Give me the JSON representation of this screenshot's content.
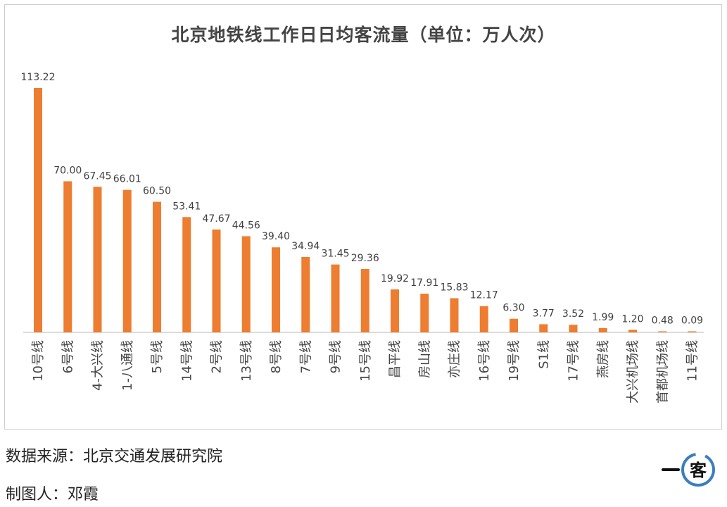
{
  "chart_data": {
    "type": "bar",
    "title": "北京地铁线工作日日均客流量（单位：万人次）",
    "xlabel": "",
    "ylabel": "",
    "ylim": [
      0,
      120
    ],
    "grid": false,
    "legend": "none",
    "bar_color": "#ED7D31",
    "categories": [
      "10号线",
      "6号线",
      "4-大兴线",
      "1-八通线",
      "5号线",
      "14号线",
      "2号线",
      "13号线",
      "8号线",
      "7号线",
      "9号线",
      "15号线",
      "昌平线",
      "房山线",
      "亦庄线",
      "16号线",
      "19号线",
      "S1线",
      "17号线",
      "燕房线",
      "大兴机场线",
      "首都机场线",
      "11号线"
    ],
    "values": [
      113.22,
      70.0,
      67.45,
      66.01,
      60.5,
      53.41,
      47.67,
      44.56,
      39.4,
      34.94,
      31.45,
      29.36,
      19.92,
      17.91,
      15.83,
      12.17,
      6.3,
      3.77,
      3.52,
      1.99,
      1.2,
      0.48,
      0.09
    ],
    "value_labels": [
      "113.22",
      "70.00",
      "67.45",
      "66.01",
      "60.50",
      "53.41",
      "47.67",
      "44.56",
      "39.40",
      "34.94",
      "31.45",
      "29.36",
      "19.92",
      "17.91",
      "15.83",
      "12.17",
      "6.30",
      "3.77",
      "3.52",
      "1.99",
      "1.20",
      "0.48",
      "0.09"
    ]
  },
  "footer": {
    "source": "数据来源：北京交通发展研究院",
    "author": "制图人：邓霞"
  },
  "logo": {
    "left_mark": "一",
    "center_char": "客",
    "ring_color": "#3a7fbf"
  }
}
